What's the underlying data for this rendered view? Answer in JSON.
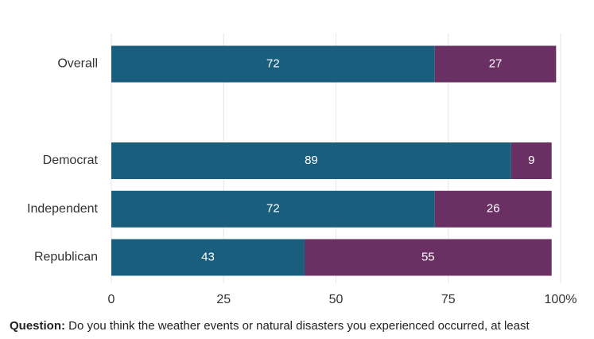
{
  "chart_data": {
    "type": "stacked-barh",
    "categories": [
      "Overall",
      null,
      "Democrat",
      "Independent",
      "Republican"
    ],
    "series": [
      {
        "color": "#1a5e7e",
        "values": [
          72,
          null,
          89,
          72,
          43
        ]
      },
      {
        "color": "#6a2f63",
        "values": [
          27,
          null,
          9,
          26,
          55
        ]
      }
    ],
    "xlim": [
      0,
      100
    ],
    "xticks": [
      0,
      25,
      50,
      75,
      {
        "value": 100,
        "label": "100%"
      }
    ],
    "grid": true,
    "note": {
      "label": "Question:",
      "text": "Do you think the weather events or natural disasters you experienced occurred, at least"
    }
  }
}
